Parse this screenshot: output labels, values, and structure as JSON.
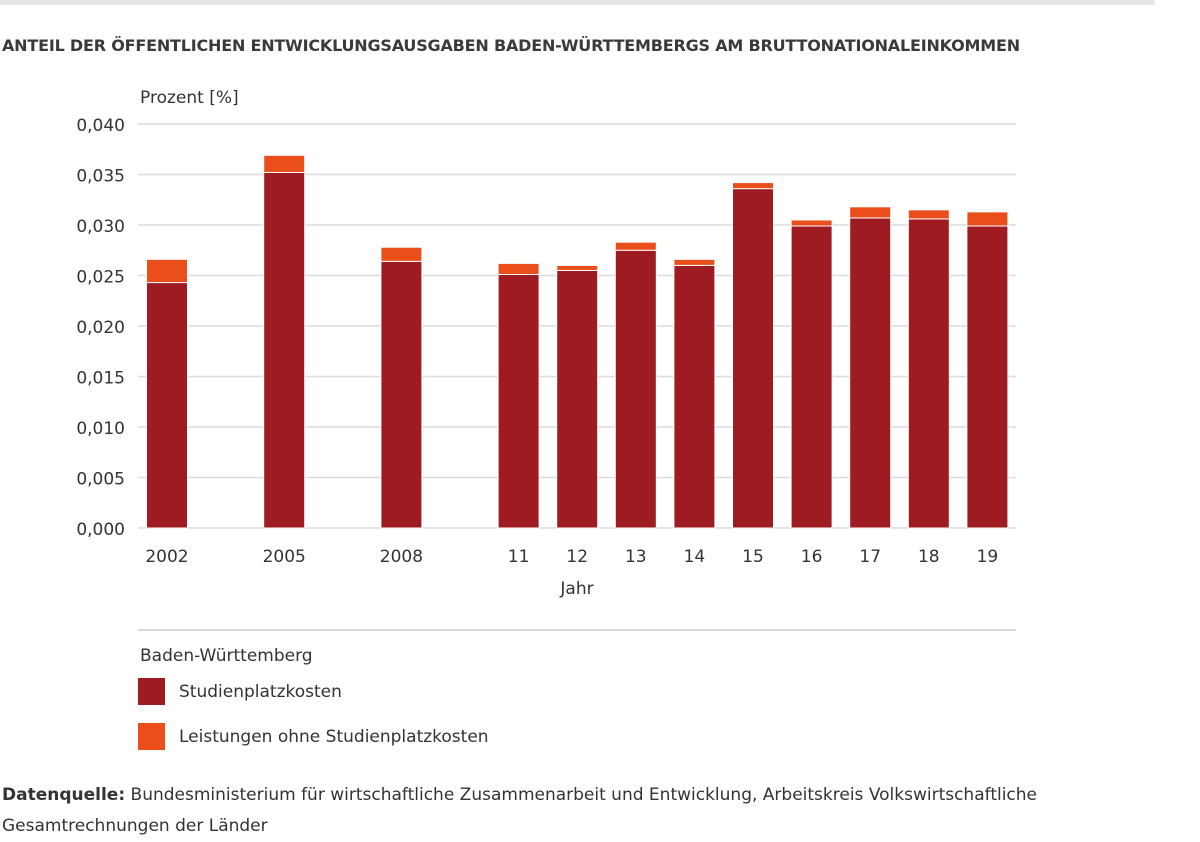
{
  "title": "ANTEIL DER ÖFFENTLICHEN ENTWICKLUNGSAUSGABEN BADEN-WÜRTTEMBERGS AM BRUTTONATIONALEINKOMMEN",
  "chart_data": {
    "type": "bar",
    "stacked": true,
    "ylabel": "Prozent [%]",
    "xlabel": "Jahr",
    "ylim": [
      0,
      0.04
    ],
    "yticks": [
      "0,000",
      "0,005",
      "0,010",
      "0,015",
      "0,020",
      "0,025",
      "0,030",
      "0,035",
      "0,040"
    ],
    "grid": true,
    "categories": [
      "2002",
      "2005",
      "2008",
      "11",
      "12",
      "13",
      "14",
      "15",
      "16",
      "17",
      "18",
      "19"
    ],
    "series": [
      {
        "name": "Studienplatzkosten",
        "color": "#9e1b22",
        "values": [
          0.0243,
          0.0352,
          0.0264,
          0.0251,
          0.0255,
          0.0275,
          0.026,
          0.0336,
          0.0299,
          0.0307,
          0.0306,
          0.0299
        ]
      },
      {
        "name": "Leistungen ohne Studienplatzkosten",
        "color": "#e94e1b",
        "values": [
          0.0023,
          0.0017,
          0.0014,
          0.0011,
          0.0005,
          0.0008,
          0.0006,
          0.0006,
          0.0006,
          0.0011,
          0.0009,
          0.0014
        ]
      }
    ],
    "legend_title": "Baden-Württemberg",
    "legend_position": "bottom"
  },
  "source": {
    "label": "Datenquelle:",
    "text": " Bundesministerium für wirtschaftliche Zusammenarbeit und Entwicklung, Arbeitskreis Volkswirtschaftliche Gesamtrechnungen der Länder"
  }
}
